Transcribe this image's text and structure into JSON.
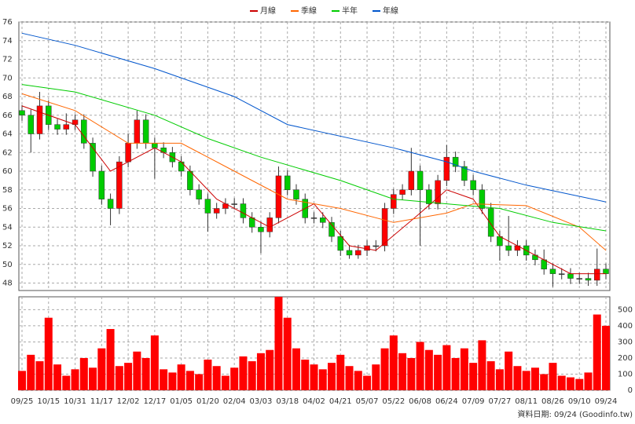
{
  "chart_data": {
    "type": "candlestick",
    "categories": [
      "09/25",
      null,
      null,
      "10/15",
      null,
      null,
      "10/31",
      null,
      null,
      "11/17",
      null,
      null,
      "12/02",
      null,
      null,
      "12/17",
      null,
      null,
      "01/05",
      null,
      null,
      "01/20",
      null,
      null,
      "02/04",
      null,
      null,
      "03/03",
      null,
      null,
      "03/18",
      null,
      null,
      "04/02",
      null,
      null,
      "04/21",
      null,
      null,
      "05/07",
      null,
      null,
      "05/22",
      null,
      null,
      "06/08",
      null,
      null,
      "06/24",
      null,
      null,
      "07/09",
      null,
      null,
      "07/27",
      null,
      null,
      "08/11",
      null,
      null,
      "08/26",
      null,
      null,
      "09/10",
      null,
      null,
      "09/24"
    ],
    "open": [
      66.5,
      66,
      64,
      67,
      65,
      64.5,
      65,
      65.5,
      63,
      60,
      57,
      56,
      61,
      63,
      65.5,
      63,
      62.5,
      62,
      61,
      60,
      58,
      57,
      55.5,
      56,
      56.5,
      56.5,
      55,
      54,
      53.5,
      55,
      59.5,
      58,
      57,
      55,
      55,
      54.5,
      53,
      51.5,
      51,
      51.5,
      52,
      52,
      56,
      57.5,
      58,
      60,
      58,
      56.5,
      59,
      61.5,
      60.5,
      59,
      58,
      56,
      53,
      52,
      51.5,
      52,
      51,
      50.5,
      49.5,
      49,
      49,
      48.5,
      48.5,
      48.3,
      49.5
    ],
    "high": [
      67.1,
      66.6,
      68.5,
      67.6,
      65.6,
      66.2,
      66.1,
      66.1,
      63.6,
      60.6,
      57.6,
      61.6,
      64,
      66.5,
      66.1,
      63.6,
      63.1,
      62.6,
      61.6,
      60.6,
      58.6,
      57.6,
      56.6,
      57.1,
      57.1,
      57.1,
      55.6,
      54.6,
      55.6,
      60.5,
      60.1,
      58.6,
      57.6,
      55.6,
      55.6,
      55.1,
      53.6,
      52.1,
      52.1,
      52.6,
      52.6,
      56.6,
      58.1,
      58.6,
      62.5,
      60.6,
      58.6,
      59.6,
      62.8,
      62.1,
      61.1,
      59.6,
      58.6,
      56.6,
      53.6,
      55.2,
      52.6,
      52.6,
      51.6,
      51.6,
      50.1,
      49.6,
      49.6,
      49.1,
      49.1,
      51.7,
      50.1
    ],
    "low": [
      65.4,
      62,
      63.4,
      64.4,
      63.9,
      63.9,
      64.4,
      62.4,
      59.4,
      56.4,
      54.2,
      55.4,
      60.4,
      62.4,
      62.4,
      59.2,
      61.4,
      60.4,
      59.4,
      57.4,
      56.4,
      53.5,
      54.9,
      55.4,
      55.9,
      54.4,
      53.4,
      51.2,
      52.9,
      54.4,
      57.4,
      56.4,
      54.4,
      54.4,
      53.9,
      52.4,
      50.9,
      50.6,
      50.6,
      50.9,
      51.4,
      51.4,
      55.4,
      56.9,
      57.4,
      52,
      55.9,
      55.9,
      58.4,
      59.9,
      58.4,
      57.4,
      55.4,
      52.4,
      50.4,
      50.9,
      50.9,
      50.4,
      49.9,
      48.9,
      47.6,
      48.4,
      47.9,
      47.9,
      47.7,
      47.7,
      48.4
    ],
    "close": [
      66,
      64,
      67,
      65,
      64.5,
      65,
      65.5,
      63,
      60,
      57,
      56,
      61,
      63,
      65.5,
      63,
      62.5,
      62,
      61,
      60,
      58,
      57,
      55.5,
      56,
      56.5,
      56.5,
      55,
      54,
      53.5,
      55,
      59.5,
      58,
      57,
      55,
      55,
      54.5,
      53,
      51.5,
      51,
      51.5,
      52,
      52,
      56,
      57.5,
      58,
      60,
      58,
      56.5,
      59,
      61.5,
      60.5,
      59,
      58,
      56,
      53,
      52,
      51.5,
      52,
      51,
      50.5,
      49.5,
      49,
      49,
      48.5,
      48.5,
      48.3,
      49.5,
      49
    ],
    "up_color": "#ff0000",
    "down_color": "#00cc00",
    "series": [
      {
        "name": "月線",
        "color": "#cc0000",
        "x": [
          0,
          6,
          10,
          15,
          18,
          22,
          28,
          33,
          37,
          40,
          45,
          48,
          51,
          54,
          58,
          62,
          66
        ],
        "values": [
          67,
          65,
          60,
          62.5,
          61,
          57,
          54,
          56.5,
          52,
          51.5,
          55.5,
          58,
          57,
          53,
          51,
          49,
          49
        ]
      },
      {
        "name": "季線",
        "color": "#ff6600",
        "x": [
          0,
          6,
          12,
          18,
          24,
          30,
          36,
          42,
          48,
          51,
          57,
          63,
          66
        ],
        "values": [
          68.3,
          66.5,
          63,
          63,
          60,
          57,
          56,
          54.5,
          55.5,
          56.5,
          56.3,
          54,
          51.5
        ]
      },
      {
        "name": "半年",
        "color": "#00cc00",
        "x": [
          0,
          6,
          15,
          21,
          27,
          36,
          42,
          48,
          54,
          60,
          66
        ],
        "values": [
          69.3,
          68.5,
          66,
          63.5,
          61.5,
          59,
          57,
          56.5,
          56,
          54.5,
          53.6
        ]
      },
      {
        "name": "年線",
        "color": "#0055cc",
        "x": [
          0,
          6,
          15,
          24,
          30,
          42,
          48,
          51,
          57,
          66
        ],
        "values": [
          74.8,
          73.5,
          71,
          68,
          65,
          62.5,
          61,
          60,
          58.5,
          56.7
        ]
      }
    ],
    "ylim": [
      47.2,
      76
    ],
    "yticks": [
      48,
      50,
      52,
      54,
      56,
      58,
      60,
      62,
      64,
      66,
      68,
      70,
      72,
      74,
      76
    ],
    "volume": {
      "color": "#ff0000",
      "values": [
        120,
        220,
        180,
        450,
        160,
        90,
        130,
        200,
        140,
        260,
        380,
        150,
        170,
        240,
        200,
        340,
        130,
        110,
        160,
        120,
        100,
        190,
        150,
        90,
        140,
        210,
        180,
        230,
        250,
        580,
        450,
        260,
        190,
        160,
        130,
        170,
        220,
        150,
        120,
        90,
        160,
        260,
        340,
        230,
        200,
        300,
        250,
        220,
        280,
        200,
        260,
        170,
        310,
        180,
        130,
        240,
        150,
        120,
        140,
        100,
        170,
        90,
        80,
        70,
        110,
        470,
        400
      ]
    },
    "y2lim": [
      0,
      580
    ],
    "y2ticks": [
      0,
      100,
      200,
      300,
      400,
      500
    ],
    "grid": true,
    "footer": "資料日期: 09/24 (Goodinfo.tw)"
  }
}
